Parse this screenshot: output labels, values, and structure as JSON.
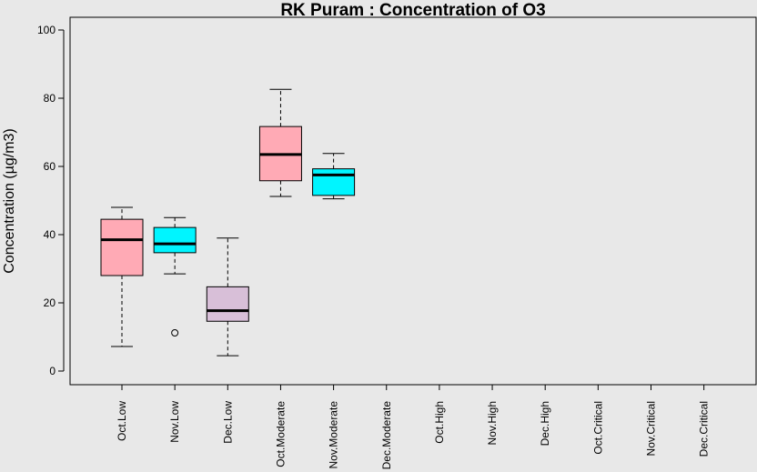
{
  "chart_data": {
    "type": "box",
    "title": "RK Puram : Concentration of O3",
    "xlabel": "",
    "ylabel": "Concentration (µg/m3)",
    "ylim": [
      -4,
      104
    ],
    "yticks": [
      0,
      20,
      40,
      60,
      80,
      100
    ],
    "grid": false,
    "categories": [
      "Oct.Low",
      "Nov.Low",
      "Dec.Low",
      "Oct.Moderate",
      "Nov.Moderate",
      "Dec.Moderate",
      "Oct.High",
      "Nov.High",
      "Dec.High",
      "Oct.Critical",
      "Nov.Critical",
      "Dec.Critical"
    ],
    "boxes": [
      {
        "category": "Oct.Low",
        "min": 7.2,
        "q1": 28,
        "median": 38.5,
        "q3": 44.5,
        "max": 48,
        "outliers": [],
        "color": "#ffaab5"
      },
      {
        "category": "Nov.Low",
        "min": 28.5,
        "q1": 34.7,
        "median": 37.3,
        "q3": 42.1,
        "max": 45,
        "outliers": [
          11.2
        ],
        "color": "#00f5ff"
      },
      {
        "category": "Dec.Low",
        "min": 4.5,
        "q1": 14.6,
        "median": 17.7,
        "q3": 24.7,
        "max": 39,
        "outliers": [],
        "color": "#d8bfd8"
      },
      {
        "category": "Oct.Moderate",
        "min": 51.2,
        "q1": 55.8,
        "median": 63.5,
        "q3": 71.7,
        "max": 82.6,
        "outliers": [],
        "color": "#ffaab5"
      },
      {
        "category": "Nov.Moderate",
        "min": 50.5,
        "q1": 51.5,
        "median": 57.5,
        "q3": 59.3,
        "max": 63.8,
        "outliers": [],
        "color": "#00f5ff"
      },
      {
        "category": "Dec.Moderate",
        "empty": true
      },
      {
        "category": "Oct.High",
        "empty": true
      },
      {
        "category": "Nov.High",
        "empty": true
      },
      {
        "category": "Dec.High",
        "empty": true
      },
      {
        "category": "Oct.Critical",
        "empty": true
      },
      {
        "category": "Nov.Critical",
        "empty": true
      },
      {
        "category": "Dec.Critical",
        "empty": true
      }
    ]
  }
}
